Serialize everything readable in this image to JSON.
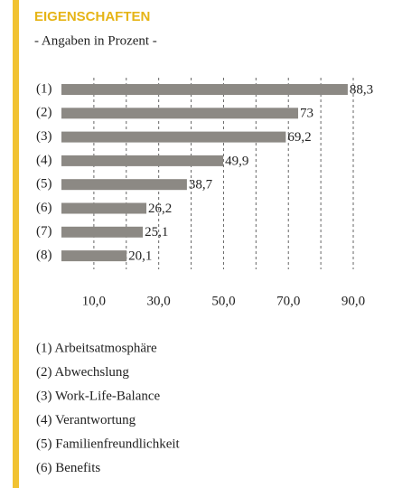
{
  "chart_data": {
    "type": "bar",
    "orientation": "horizontal",
    "title": "EIGENSCHAFTEN",
    "subtitle": "- Angaben in Prozent -",
    "categories": [
      "(1)",
      "(2)",
      "(3)",
      "(4)",
      "(5)",
      "(6)",
      "(7)",
      "(8)"
    ],
    "values": [
      88.3,
      73,
      69.2,
      49.9,
      38.7,
      26.2,
      25.1,
      20.1
    ],
    "value_labels": [
      "88,3",
      "73",
      "69,2",
      "49,9",
      "38,7",
      "26,2",
      "25,1",
      "20,1"
    ],
    "color": "#8c8984",
    "xlim": [
      0,
      90
    ],
    "xticks": [
      {
        "value": 10,
        "label": "10,0"
      },
      {
        "value": 30,
        "label": "30,0"
      },
      {
        "value": 50,
        "label": "50,0"
      },
      {
        "value": 70,
        "label": "70,0"
      },
      {
        "value": 90,
        "label": "90,0"
      }
    ],
    "minor_xticks": [
      20,
      40,
      60,
      80
    ],
    "grid": true,
    "legend_items": [
      "(1) Arbeitsatmosphäre",
      "(2) Abwechslung",
      "(3) Work-Life-Balance",
      "(4) Verantwortung",
      "(5) Familienfreundlichkeit",
      "(6) Benefits"
    ]
  }
}
